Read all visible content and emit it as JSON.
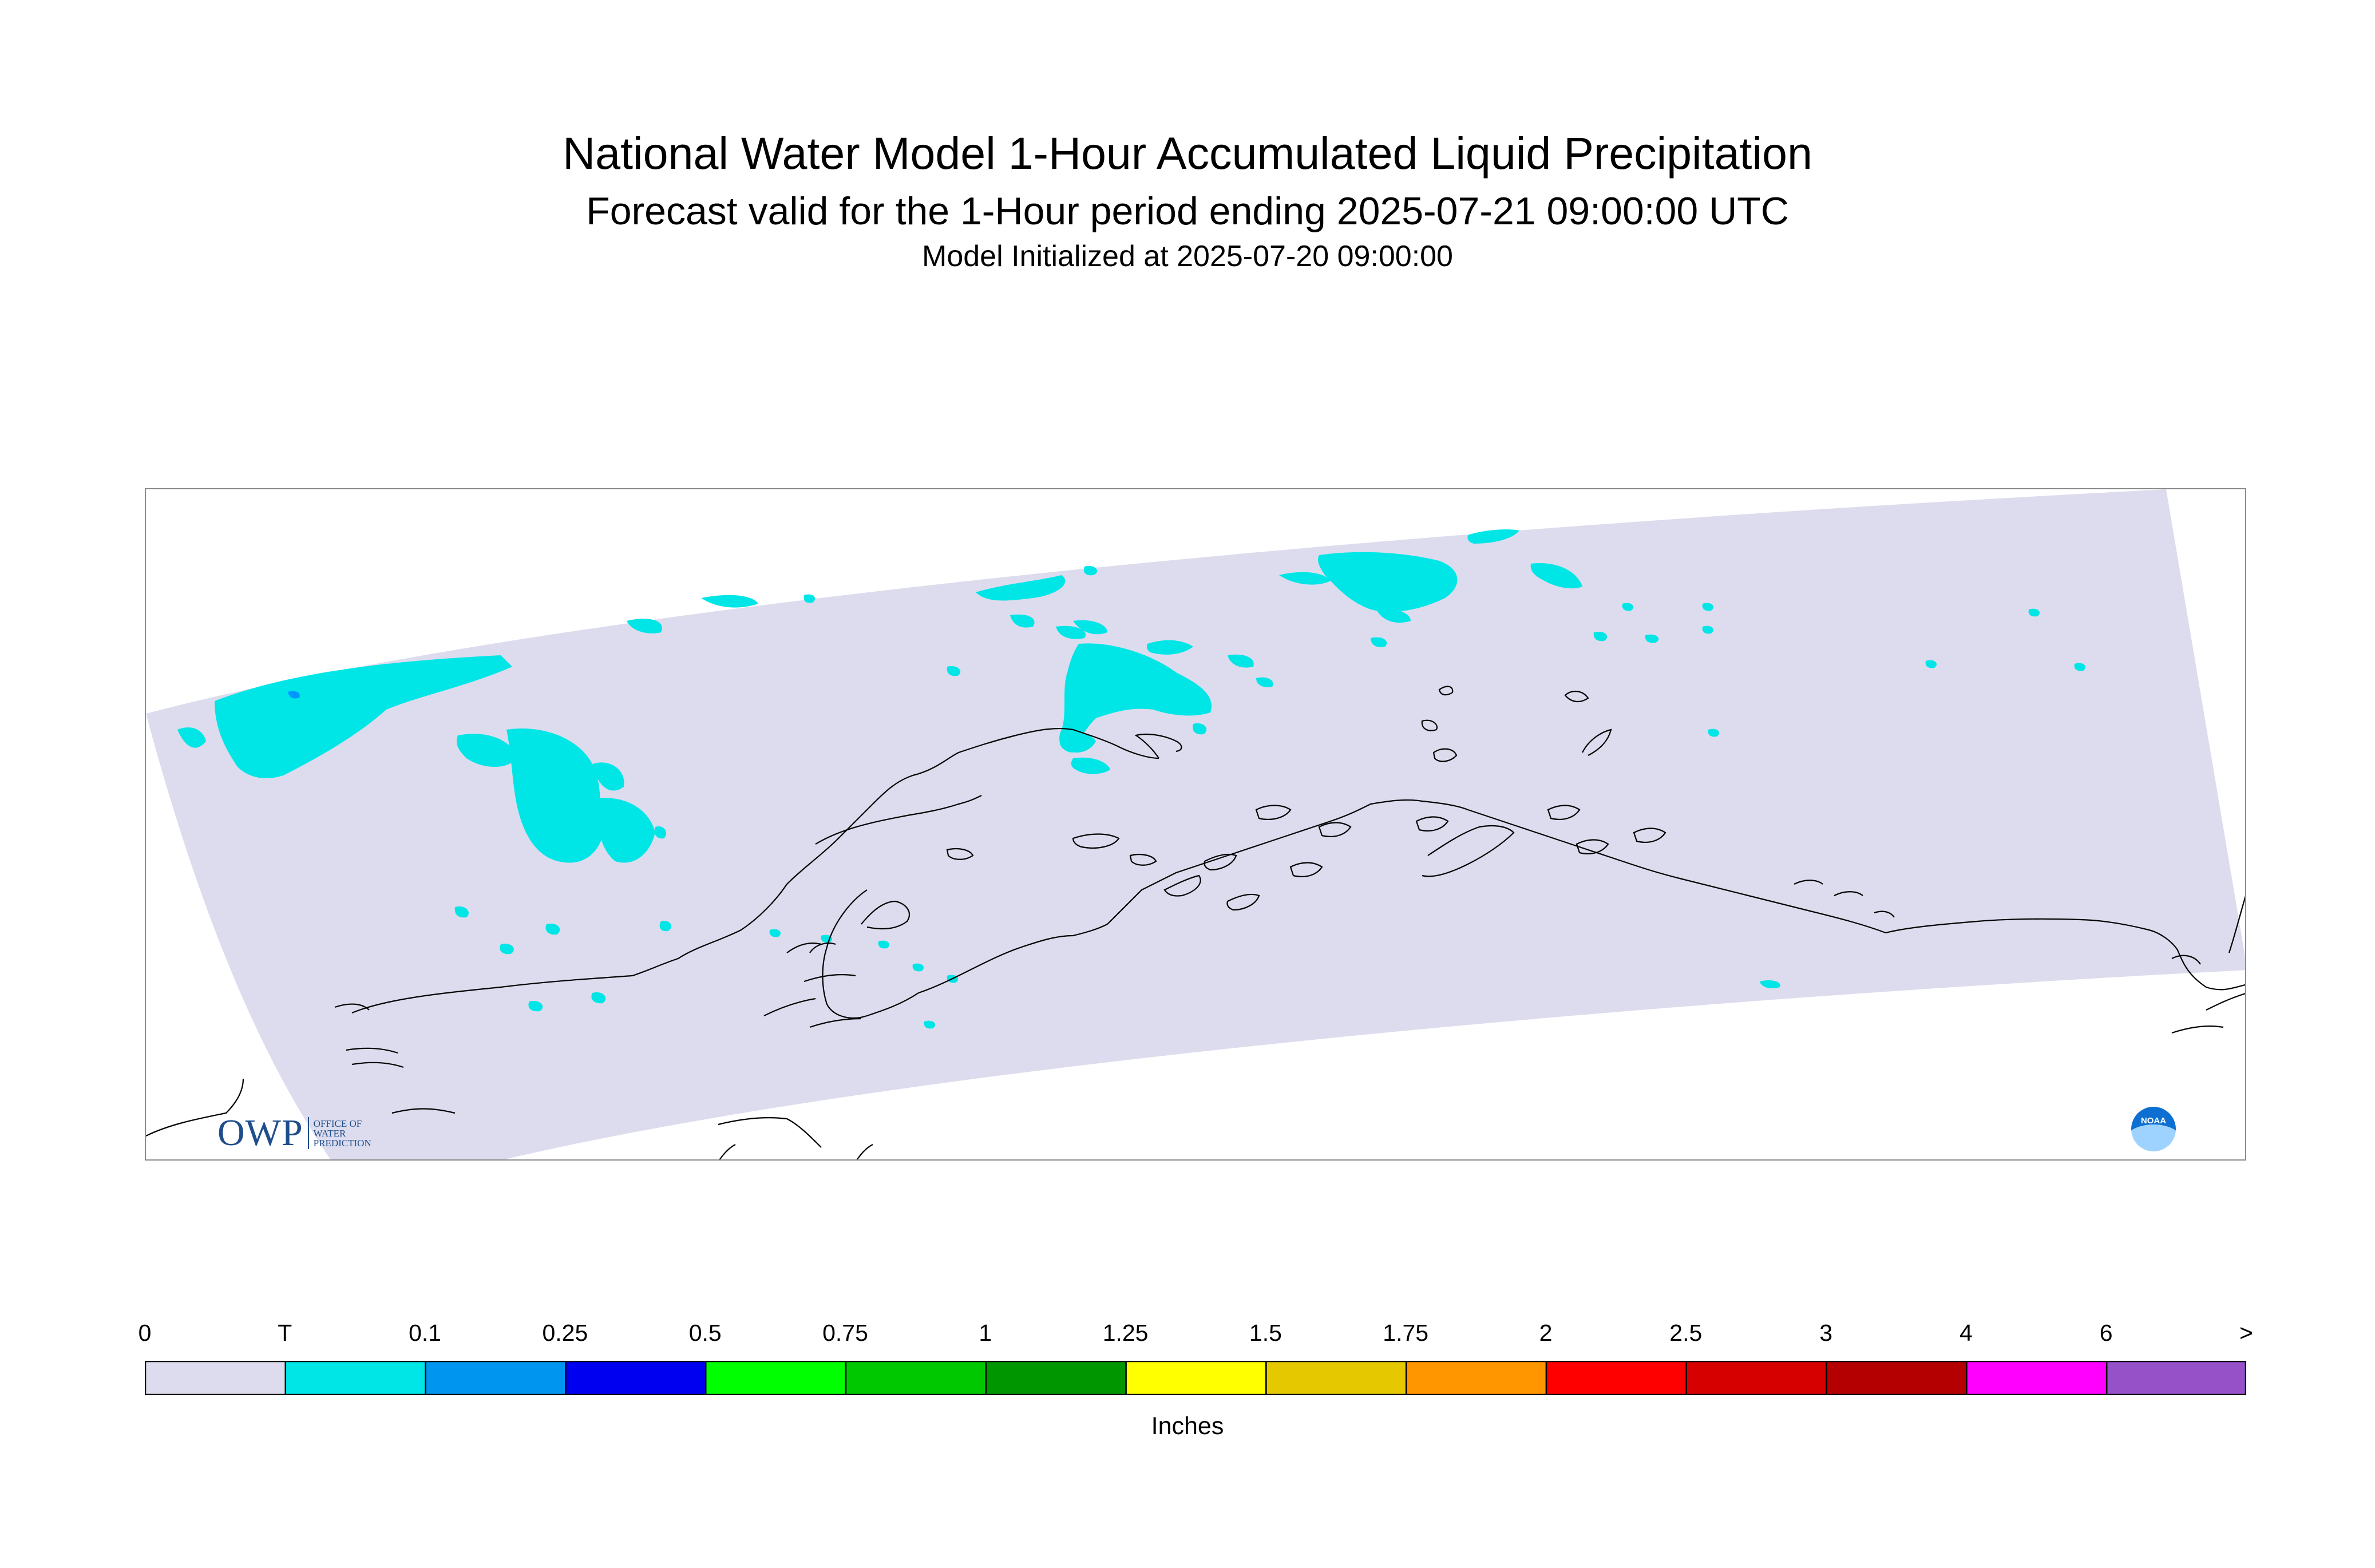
{
  "header": {
    "title": "National Water Model 1-Hour Accumulated Liquid Precipitation",
    "subtitle": "Forecast valid for the 1-Hour period ending 2025-07-21 09:00:00 UTC",
    "init": "Model Initialized at 2025-07-20 09:00:00"
  },
  "map": {
    "domain_color": "#dcdcee",
    "coast_color": "#000000",
    "precip_color": "#00e6e6",
    "precip_heavier_color": "#0096ff"
  },
  "logos": {
    "owp_text": "OWP",
    "owp_line1": "OFFICE OF",
    "owp_line2": "WATER",
    "owp_line3": "PREDICTION",
    "noaa_text": "NOAA",
    "owp_color": "#1f4e8c",
    "noaa_color": "#0d6fd1"
  },
  "legend": {
    "tick_labels": [
      "0",
      "T",
      "0.1",
      "0.25",
      "0.5",
      "0.75",
      "1",
      "1.25",
      "1.5",
      "1.75",
      "2",
      "2.5",
      "3",
      "4",
      "6",
      ">"
    ],
    "colors": [
      "#dcdcee",
      "#00e6e6",
      "#0096f0",
      "#0000f0",
      "#00ff00",
      "#00c800",
      "#009600",
      "#ffff00",
      "#e6c800",
      "#ff9600",
      "#ff0000",
      "#d70000",
      "#b40000",
      "#ff00ff",
      "#9650c8"
    ],
    "units": "Inches"
  }
}
